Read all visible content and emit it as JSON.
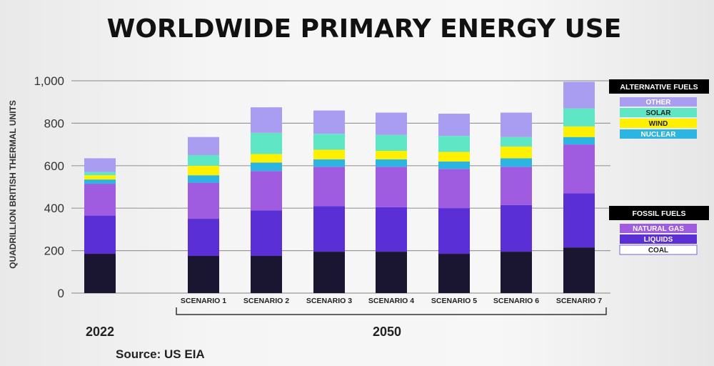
{
  "chart_data": {
    "type": "bar",
    "stacked": true,
    "title": "WORLDWIDE PRIMARY ENERGY USE",
    "ylabel": "QUADRILLION BRITISH THERMAL UNITS",
    "ylim": [
      0,
      1000
    ],
    "yticks": [
      0,
      200,
      400,
      600,
      800,
      1000
    ],
    "ytick_labels": [
      "0",
      "200",
      "400",
      "600",
      "800",
      "1,000"
    ],
    "categories": [
      "",
      "SCENARIO 1",
      "SCENARIO 2",
      "SCENARIO 3",
      "SCENARIO 4",
      "SCENARIO 5",
      "SCENARIO 6",
      "SCENARIO 7"
    ],
    "group_labels": {
      "first": "2022",
      "rest": "2050"
    },
    "series": [
      {
        "name": "COAL",
        "color": "#1a1530",
        "values": [
          185,
          175,
          175,
          195,
          195,
          185,
          195,
          215
        ]
      },
      {
        "name": "LIQUIDS",
        "color": "#5a2fd6",
        "values": [
          180,
          175,
          215,
          215,
          210,
          215,
          220,
          255
        ]
      },
      {
        "name": "NATURAL GAS",
        "color": "#9f5ce0",
        "values": [
          150,
          170,
          185,
          185,
          190,
          185,
          180,
          230
        ]
      },
      {
        "name": "NUCLEAR",
        "color": "#2bb5e0",
        "values": [
          20,
          35,
          40,
          35,
          35,
          35,
          40,
          35
        ]
      },
      {
        "name": "WIND",
        "color": "#fff000",
        "values": [
          20,
          45,
          40,
          45,
          40,
          45,
          55,
          50
        ]
      },
      {
        "name": "SOLAR",
        "color": "#5fe6c4",
        "values": [
          15,
          50,
          100,
          75,
          75,
          75,
          45,
          85
        ]
      },
      {
        "name": "OTHER",
        "color": "#a89df0",
        "values": [
          65,
          85,
          120,
          110,
          105,
          105,
          115,
          125
        ]
      }
    ],
    "legend": {
      "placement": "right",
      "alternative_header": "ALTERNATIVE FUELS",
      "alternative_items": [
        "OTHER",
        "SOLAR",
        "WIND",
        "NUCLEAR"
      ],
      "fossil_header": "FOSSIL FUELS",
      "fossil_items": [
        "NATURAL GAS",
        "LIQUIDS",
        "COAL"
      ]
    }
  },
  "source": "Source: US EIA"
}
